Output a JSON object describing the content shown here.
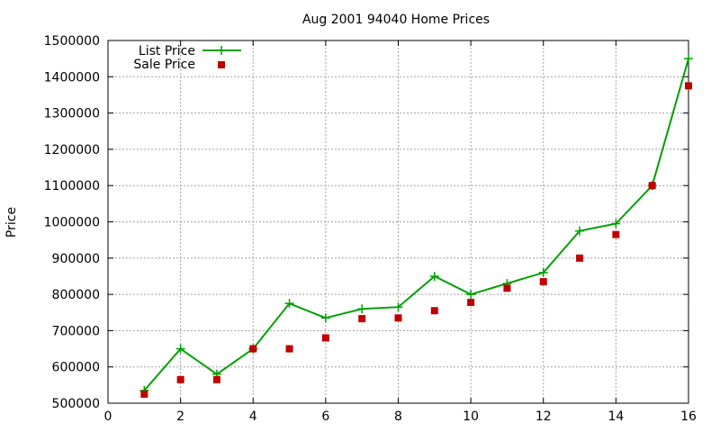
{
  "chart_data": {
    "type": "line",
    "title": "Aug 2001 94040 Home Prices",
    "xlabel": "",
    "ylabel": "Price",
    "xlim": [
      0,
      16
    ],
    "ylim": [
      500000,
      1500000
    ],
    "xticks": [
      0,
      2,
      4,
      6,
      8,
      10,
      12,
      14,
      16
    ],
    "yticks": [
      500000,
      600000,
      700000,
      800000,
      900000,
      1000000,
      1100000,
      1200000,
      1300000,
      1400000,
      1500000
    ],
    "grid": true,
    "legend_position": "top-left",
    "series": [
      {
        "name": "List Price",
        "style": "line-with-plus-markers",
        "color": "#00a000",
        "x": [
          1,
          2,
          3,
          4,
          5,
          6,
          7,
          8,
          9,
          10,
          11,
          12,
          13,
          14,
          15,
          16
        ],
        "values": [
          535000,
          650000,
          580000,
          650000,
          775000,
          735000,
          760000,
          765000,
          850000,
          800000,
          830000,
          860000,
          975000,
          995000,
          1100000,
          1450000
        ]
      },
      {
        "name": "Sale Price",
        "style": "square-markers",
        "color": "#c00000",
        "x": [
          1,
          2,
          3,
          4,
          5,
          6,
          7,
          8,
          9,
          10,
          11,
          12,
          13,
          14,
          15,
          16
        ],
        "values": [
          525000,
          565000,
          565000,
          650000,
          650000,
          680000,
          733000,
          735000,
          755000,
          778000,
          817000,
          835000,
          900000,
          965000,
          1100000,
          1375000
        ]
      }
    ]
  }
}
